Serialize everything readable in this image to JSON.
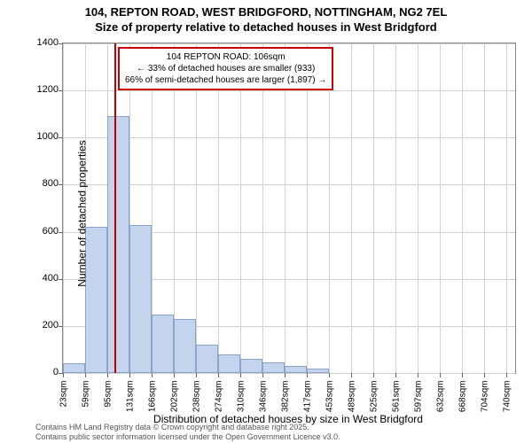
{
  "title_main": "104, REPTON ROAD, WEST BRIDGFORD, NOTTINGHAM, NG2 7EL",
  "title_sub": "Size of property relative to detached houses in West Bridgford",
  "y_axis_label": "Number of detached properties",
  "x_axis_label": "Distribution of detached houses by size in West Bridgford",
  "attribution_line1": "Contains HM Land Registry data © Crown copyright and database right 2025.",
  "attribution_line2": "Contains public sector information licensed under the Open Government Licence v3.0.",
  "annotation": {
    "line1": "104 REPTON ROAD: 106sqm",
    "line2": "← 33% of detached houses are smaller (933)",
    "line3": "66% of semi-detached houses are larger (1,897) →"
  },
  "chart": {
    "type": "histogram",
    "ylim": [
      0,
      1400
    ],
    "ytick_step": 200,
    "y_ticks": [
      0,
      200,
      400,
      600,
      800,
      1000,
      1200,
      1400
    ],
    "x_labels": [
      "23sqm",
      "59sqm",
      "95sqm",
      "131sqm",
      "166sqm",
      "202sqm",
      "238sqm",
      "274sqm",
      "310sqm",
      "346sqm",
      "382sqm",
      "417sqm",
      "453sqm",
      "489sqm",
      "525sqm",
      "561sqm",
      "597sqm",
      "632sqm",
      "668sqm",
      "704sqm",
      "740sqm"
    ],
    "bars": [
      40,
      620,
      1090,
      630,
      250,
      230,
      120,
      80,
      60,
      45,
      30,
      18,
      0,
      0,
      0,
      0,
      0,
      0,
      0,
      0
    ],
    "bar_color": "#c4d4ec",
    "bar_border_color": "#8aa4cc",
    "ref_line_value": 106,
    "ref_line_color": "#bb0000",
    "background_color": "#ffffff",
    "grid_color": "#d0d0d0",
    "title_fontsize": 13,
    "label_fontsize": 12,
    "tick_fontsize": 11,
    "x_min": 23,
    "x_max": 758,
    "bin_width": 36
  }
}
